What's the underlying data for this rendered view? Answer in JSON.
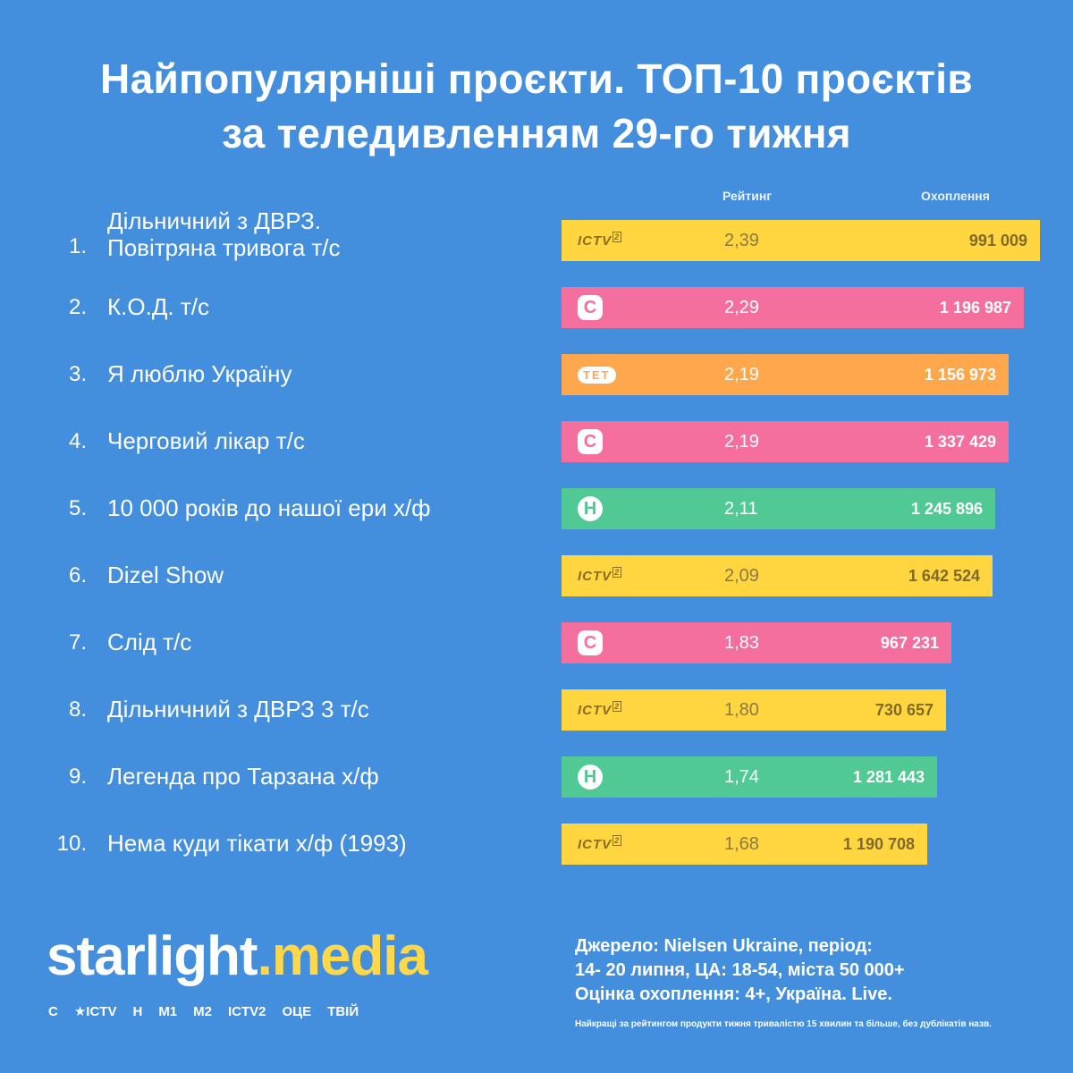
{
  "title": {
    "line1": "Найпопулярніші проєкти. ТОП-10 проєктів",
    "line2": "за теледивленням 29-го тижня"
  },
  "columns": {
    "rating": "Рейтинг",
    "reach": "Охоплення"
  },
  "colors": {
    "background": "#448ede",
    "ictv": "#ffd540",
    "stb": "#f46f9e",
    "tet": "#ffa74d",
    "novyi": "#50c995",
    "logo_dark": "#8a6d1a"
  },
  "chart_data": {
    "type": "bar",
    "orientation": "horizontal",
    "categories": [
      "Дільничний з ДВРЗ. Повітряна тривога т/с",
      "К.О.Д. т/с",
      "Я люблю Україну",
      "Черговий лікар т/с",
      "10 000 років до нашої ери х/ф",
      "Dizel Show",
      "Слід т/с",
      "Дільничний з ДВРЗ 3 т/с",
      "Легенда про Тарзана х/ф",
      "Нема куди тікати х/ф (1993)"
    ],
    "rows": [
      {
        "rank": "1.",
        "name_lines": [
          "Дільничний з ДВРЗ.",
          "Повітряна тривога т/с"
        ],
        "channel": "ictv2",
        "logo_text": "ICTV",
        "logo_sup": "2",
        "rating": 2.39,
        "rating_label": "2,39",
        "reach_label": "991 009"
      },
      {
        "rank": "2.",
        "name_lines": [
          "К.О.Д. т/с"
        ],
        "channel": "stb",
        "logo_text": "С",
        "rating": 2.29,
        "rating_label": "2,29",
        "reach_label": "1 196 987"
      },
      {
        "rank": "3.",
        "name_lines": [
          "Я люблю Україну"
        ],
        "channel": "tet",
        "logo_text": "ТЕТ",
        "rating": 2.19,
        "rating_label": "2,19",
        "reach_label": "1 156 973"
      },
      {
        "rank": "4.",
        "name_lines": [
          "Черговий лікар т/с"
        ],
        "channel": "stb",
        "logo_text": "С",
        "rating": 2.19,
        "rating_label": "2,19",
        "reach_label": "1 337 429"
      },
      {
        "rank": "5.",
        "name_lines": [
          "10 000 років до нашої ери х/ф"
        ],
        "channel": "novyi",
        "logo_text": "Н",
        "rating": 2.11,
        "rating_label": "2,11",
        "reach_label": "1 245 896"
      },
      {
        "rank": "6.",
        "name_lines": [
          "Dizel Show"
        ],
        "channel": "ictv2",
        "logo_text": "ICTV",
        "logo_sup": "2",
        "rating": 2.09,
        "rating_label": "2,09",
        "reach_label": "1 642 524"
      },
      {
        "rank": "7.",
        "name_lines": [
          "Слід т/с"
        ],
        "channel": "stb",
        "logo_text": "С",
        "rating": 1.83,
        "rating_label": "1,83",
        "reach_label": "967 231"
      },
      {
        "rank": "8.",
        "name_lines": [
          "Дільничний з ДВРЗ 3 т/с"
        ],
        "channel": "ictv2",
        "logo_text": "ICTV",
        "logo_sup": "2",
        "rating": 1.8,
        "rating_label": "1,80",
        "reach_label": "730 657"
      },
      {
        "rank": "9.",
        "name_lines": [
          "Легенда про Тарзана х/ф"
        ],
        "channel": "novyi",
        "logo_text": "Н",
        "rating": 1.74,
        "rating_label": "1,74",
        "reach_label": "1 281 443"
      },
      {
        "rank": "10.",
        "name_lines": [
          "Нема куди тікати х/ф (1993)"
        ],
        "channel": "ictv2",
        "logo_text": "ICTV",
        "logo_sup": "2",
        "rating": 1.68,
        "rating_label": "1,68",
        "reach_label": "1 190 708"
      }
    ]
  },
  "brand": {
    "part1": "starlight",
    "dot": ".",
    "part2": "media",
    "channels": [
      "С",
      "★ICTV",
      "Н",
      "M1",
      "M2",
      "ICTV2",
      "ОЦЕ",
      "ТВІЙ"
    ]
  },
  "source": {
    "line1": "Джерело: Nielsen Ukraine, період:",
    "line2": "14- 20 липня, ЦА: 18-54, міста 50 000+",
    "line3": "Оцінка охоплення: 4+, Україна. Live."
  },
  "footnote": "Найкращі за рейтингом продукти тижня тривалістю 15 хвилин та більше, без дублікатів назв."
}
